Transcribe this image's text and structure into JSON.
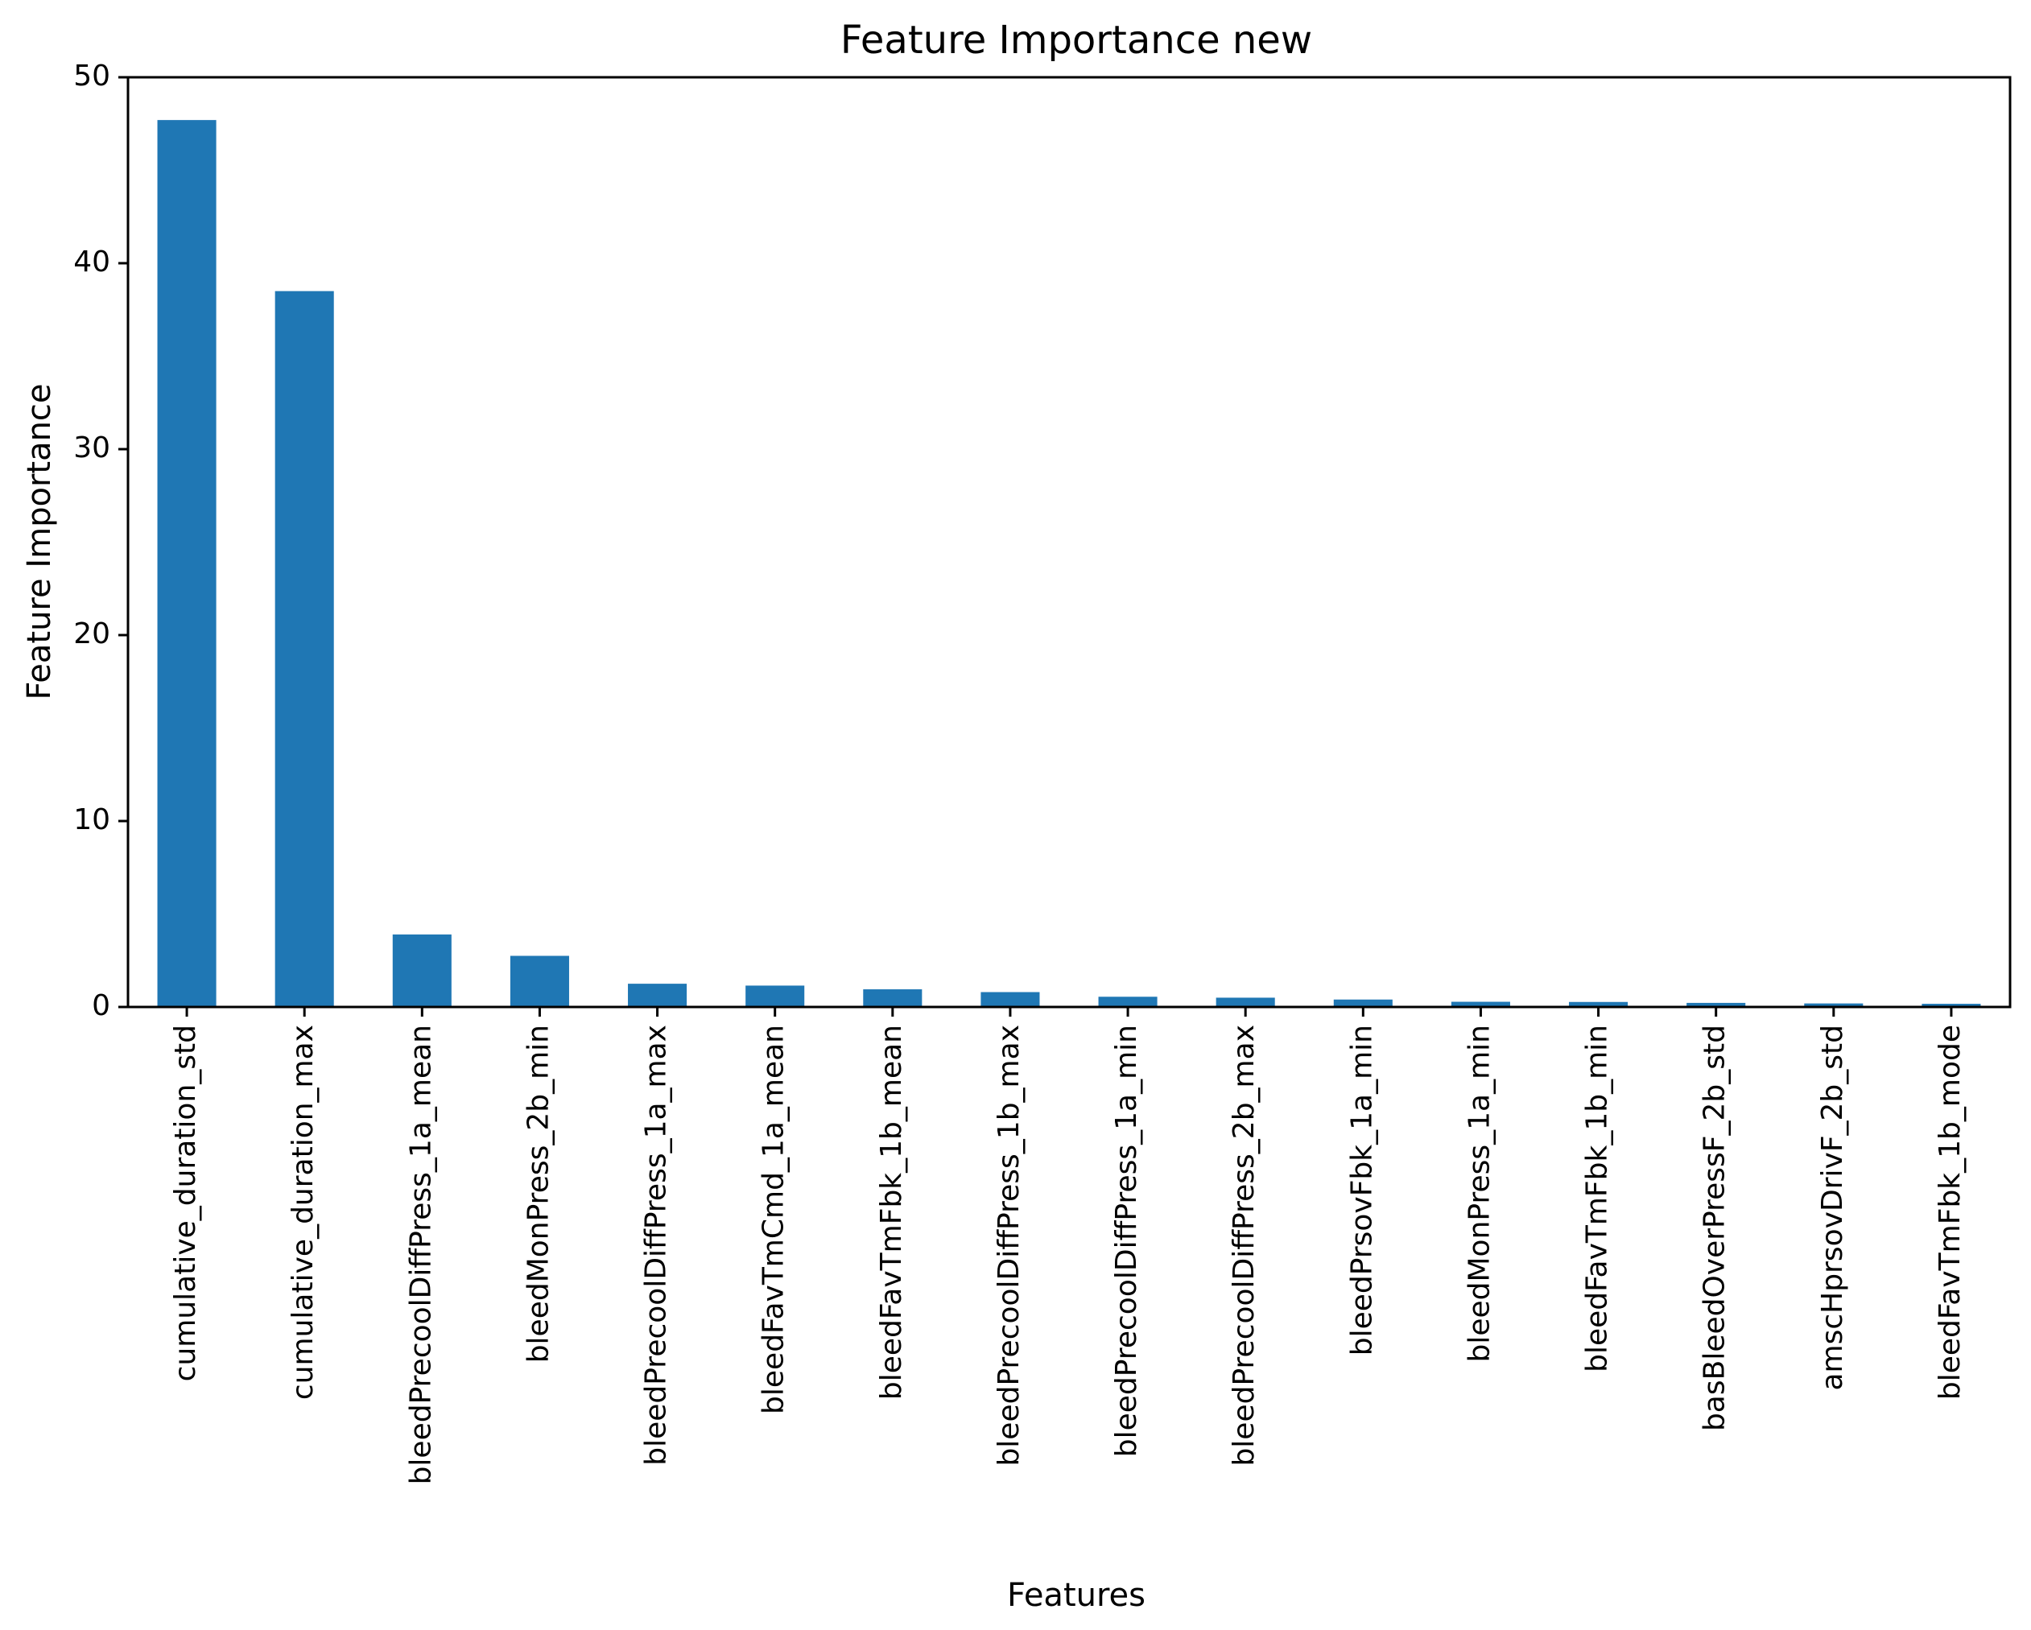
{
  "chart_data": {
    "type": "bar",
    "title": "Feature Importance new",
    "xlabel": "Features",
    "ylabel": "Feature Importance",
    "ylim": [
      0,
      50
    ],
    "yticks": [
      0,
      10,
      20,
      30,
      40,
      50
    ],
    "grid": false,
    "legend": "none",
    "bar_color": "#1f77b4",
    "categories": [
      "cumulative_duration_std",
      "cumulative_duration_max",
      "bleedPrecoolDiffPress_1a_mean",
      "bleedMonPress_2b_min",
      "bleedPrecoolDiffPress_1a_max",
      "bleedFavTmCmd_1a_mean",
      "bleedFavTmFbk_1b_mean",
      "bleedPrecoolDiffPress_1b_max",
      "bleedPrecoolDiffPress_1a_min",
      "bleedPrecoolDiffPress_2b_max",
      "bleedPrsovFbk_1a_min",
      "bleedMonPress_1a_min",
      "bleedFavTmFbk_1b_min",
      "basBleedOverPressF_2b_std",
      "amscHprsovDrivF_2b_std",
      "bleedFavTmFbk_1b_mode"
    ],
    "values": [
      47.7,
      38.5,
      3.9,
      2.75,
      1.25,
      1.15,
      0.95,
      0.8,
      0.55,
      0.5,
      0.4,
      0.28,
      0.27,
      0.22,
      0.19,
      0.17
    ]
  }
}
